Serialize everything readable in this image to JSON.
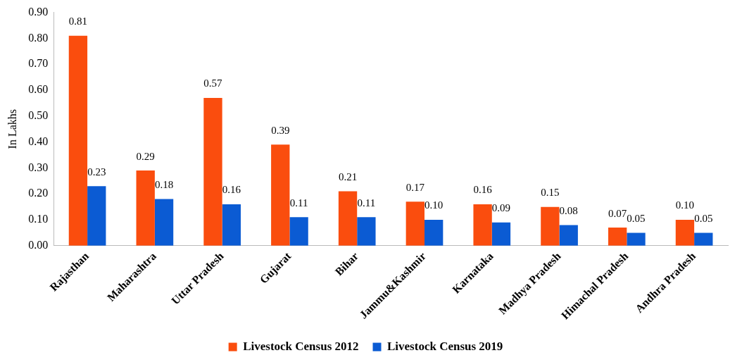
{
  "chart_data": {
    "type": "bar",
    "ylabel": "In Lakhs",
    "categories": [
      "Rajasthan",
      "Maharashtra",
      "Uttar Pradesh",
      "Gujarat",
      "Bihar",
      "Jammu&Kashmir",
      "Karnataka",
      "Madhya Pradesh",
      "Himachal Pradesh",
      "Andhra Pradesh"
    ],
    "series": [
      {
        "name": "Livestock Census 2012",
        "color": "#fa4d0e",
        "values": [
          0.81,
          0.29,
          0.57,
          0.39,
          0.21,
          0.17,
          0.16,
          0.15,
          0.07,
          0.1
        ],
        "value_labels": [
          "0.81",
          "0.29",
          "0.57",
          "0.39",
          "0.21",
          "0.17",
          "0.16",
          "0.15",
          "0.07",
          "0.10"
        ]
      },
      {
        "name": "Livestock Census 2019",
        "color": "#0b5bd3",
        "values": [
          0.23,
          0.18,
          0.16,
          0.11,
          0.11,
          0.1,
          0.09,
          0.08,
          0.05,
          0.05
        ],
        "value_labels": [
          "0.23",
          "0.18",
          "0.16",
          "0.11",
          "0.11",
          "0.10",
          "0.09",
          "0.08",
          "0.05",
          "0.05"
        ]
      }
    ],
    "ylim": [
      0,
      0.9
    ],
    "yticks": [
      {
        "value": 0,
        "label": "0.00"
      },
      {
        "value": 0.1,
        "label": "0.10"
      },
      {
        "value": 0.2,
        "label": "0.20"
      },
      {
        "value": 0.3,
        "label": "0.30"
      },
      {
        "value": 0.4,
        "label": "0.40"
      },
      {
        "value": 0.5,
        "label": "0.50"
      },
      {
        "value": 0.6,
        "label": "0.60"
      },
      {
        "value": 0.7,
        "label": "0.70"
      },
      {
        "value": 0.8,
        "label": "0.80"
      },
      {
        "value": 0.9,
        "label": "0.90"
      }
    ],
    "grid": false,
    "legend": "bottom"
  }
}
